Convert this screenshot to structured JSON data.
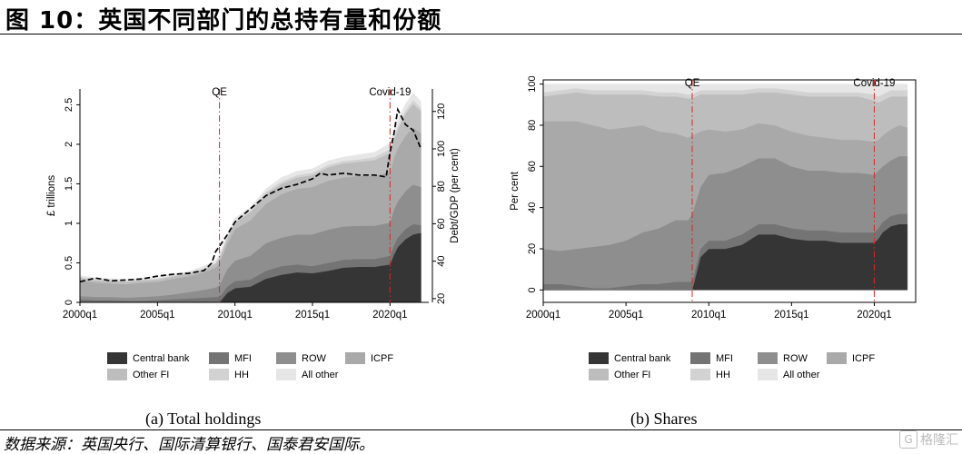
{
  "figure": {
    "title": "图 10：英国不同部门的总持有量和份额",
    "source": "数据来源：英国央行、国际清算银行、国泰君安国际。",
    "watermark": "格隆汇"
  },
  "colors": {
    "Central bank": "#353535",
    "MFI": "#747474",
    "ROW": "#8e8e8e",
    "ICPF": "#a9a9a9",
    "Other FI": "#bdbdbd",
    "HH": "#d2d2d2",
    "All other": "#e6e6e6",
    "event_line": "#d62728"
  },
  "legend": [
    "Central bank",
    "MFI",
    "ROW",
    "ICPF",
    "Other FI",
    "HH",
    "All other"
  ],
  "chart_data": [
    {
      "type": "area",
      "caption": "(a)  Total holdings",
      "stacked": true,
      "x": [
        2000.0,
        2001.0,
        2002.0,
        2003.0,
        2004.0,
        2005.0,
        2006.0,
        2007.0,
        2008.0,
        2008.75,
        2009.0,
        2009.5,
        2010.0,
        2011.0,
        2012.0,
        2013.0,
        2014.0,
        2015.0,
        2016.0,
        2017.0,
        2018.0,
        2019.0,
        2020.0,
        2020.25,
        2020.5,
        2021.0,
        2021.5,
        2022.0
      ],
      "xlim": [
        2000.0,
        2022.5
      ],
      "xticks": [
        {
          "value": 2000.0,
          "label": "2000q1"
        },
        {
          "value": 2005.0,
          "label": "2005q1"
        },
        {
          "value": 2010.0,
          "label": "2010q1"
        },
        {
          "value": 2015.0,
          "label": "2015q1"
        },
        {
          "value": 2020.0,
          "label": "2020q1"
        }
      ],
      "ylim": [
        0,
        2.7
      ],
      "yticks": [
        0,
        0.5,
        1,
        1.5,
        2,
        2.5
      ],
      "ylabel": "£ trillions",
      "y2label": "Debt/GDP (per cent)",
      "y2lim": [
        18,
        132
      ],
      "y2ticks": [
        20,
        40,
        60,
        80,
        100,
        120
      ],
      "events": [
        {
          "x": 2009.0,
          "label": "QE"
        },
        {
          "x": 2020.0,
          "label": "Covid-19"
        }
      ],
      "series": [
        {
          "name": "Central bank",
          "values": [
            0,
            0,
            0,
            0,
            0,
            0,
            0,
            0,
            0,
            0,
            0,
            0.12,
            0.18,
            0.2,
            0.3,
            0.35,
            0.38,
            0.37,
            0.4,
            0.44,
            0.45,
            0.45,
            0.48,
            0.6,
            0.7,
            0.8,
            0.86,
            0.88
          ]
        },
        {
          "name": "MFI",
          "values": [
            0.04,
            0.03,
            0.03,
            0.02,
            0.02,
            0.03,
            0.04,
            0.05,
            0.06,
            0.07,
            0.07,
            0.08,
            0.09,
            0.09,
            0.1,
            0.11,
            0.1,
            0.09,
            0.1,
            0.1,
            0.1,
            0.1,
            0.11,
            0.12,
            0.12,
            0.13,
            0.13,
            0.1
          ]
        },
        {
          "name": "ROW",
          "values": [
            0.04,
            0.04,
            0.04,
            0.04,
            0.05,
            0.05,
            0.06,
            0.08,
            0.1,
            0.12,
            0.15,
            0.22,
            0.26,
            0.3,
            0.35,
            0.36,
            0.38,
            0.4,
            0.42,
            0.42,
            0.42,
            0.42,
            0.42,
            0.45,
            0.46,
            0.48,
            0.5,
            0.48
          ]
        },
        {
          "name": "ICPF",
          "values": [
            0.2,
            0.18,
            0.17,
            0.17,
            0.18,
            0.18,
            0.2,
            0.2,
            0.22,
            0.25,
            0.28,
            0.32,
            0.4,
            0.45,
            0.5,
            0.55,
            0.58,
            0.6,
            0.62,
            0.62,
            0.63,
            0.63,
            0.64,
            0.66,
            0.67,
            0.7,
            0.72,
            0.68
          ]
        },
        {
          "name": "Other FI",
          "values": [
            0.03,
            0.03,
            0.03,
            0.03,
            0.03,
            0.03,
            0.03,
            0.03,
            0.04,
            0.05,
            0.06,
            0.07,
            0.08,
            0.1,
            0.12,
            0.13,
            0.14,
            0.15,
            0.17,
            0.18,
            0.18,
            0.2,
            0.24,
            0.22,
            0.24,
            0.28,
            0.3,
            0.28
          ]
        },
        {
          "name": "HH",
          "values": [
            0.01,
            0.01,
            0.01,
            0.01,
            0.01,
            0.01,
            0.01,
            0.01,
            0.01,
            0.01,
            0.02,
            0.02,
            0.02,
            0.02,
            0.03,
            0.03,
            0.03,
            0.03,
            0.03,
            0.03,
            0.03,
            0.04,
            0.05,
            0.04,
            0.04,
            0.04,
            0.05,
            0.04
          ]
        },
        {
          "name": "All other",
          "values": [
            0.02,
            0.02,
            0.02,
            0.02,
            0.02,
            0.02,
            0.02,
            0.02,
            0.03,
            0.03,
            0.03,
            0.03,
            0.04,
            0.04,
            0.04,
            0.05,
            0.05,
            0.05,
            0.05,
            0.05,
            0.06,
            0.06,
            0.07,
            0.07,
            0.08,
            0.08,
            0.09,
            0.08
          ]
        }
      ],
      "debt_gdp": {
        "x": [
          2000.0,
          2001.0,
          2002.0,
          2003.0,
          2004.0,
          2005.0,
          2006.0,
          2007.0,
          2008.0,
          2008.5,
          2008.75,
          2009.0,
          2009.5,
          2010.0,
          2011.0,
          2012.0,
          2013.0,
          2014.0,
          2015.0,
          2015.5,
          2016.0,
          2017.0,
          2018.0,
          2019.0,
          2019.75,
          2020.0,
          2020.25,
          2020.5,
          2021.0,
          2021.5,
          2022.0
        ],
        "values": [
          29.0,
          31.0,
          29.5,
          30.0,
          30.5,
          32.0,
          33.0,
          33.5,
          35.0,
          39.0,
          45.0,
          48.0,
          54.0,
          61.0,
          68.0,
          75.0,
          79.0,
          81.0,
          84.0,
          87.0,
          86.0,
          87.0,
          86.0,
          86.0,
          85.0,
          98.0,
          108.0,
          121.0,
          113.0,
          110.0,
          100.0
        ]
      }
    },
    {
      "type": "area",
      "caption": "(b)  Shares",
      "stacked": true,
      "x": [
        2000.0,
        2001.0,
        2002.0,
        2003.0,
        2004.0,
        2005.0,
        2006.0,
        2007.0,
        2008.0,
        2008.75,
        2009.0,
        2009.5,
        2010.0,
        2011.0,
        2012.0,
        2013.0,
        2014.0,
        2015.0,
        2016.0,
        2017.0,
        2018.0,
        2019.0,
        2020.0,
        2020.25,
        2020.5,
        2021.0,
        2021.5,
        2022.0
      ],
      "xlim": [
        2000.0,
        2022.5
      ],
      "xticks": [
        {
          "value": 2000.0,
          "label": "2000q1"
        },
        {
          "value": 2005.0,
          "label": "2005q1"
        },
        {
          "value": 2010.0,
          "label": "2010q1"
        },
        {
          "value": 2015.0,
          "label": "2015q1"
        },
        {
          "value": 2020.0,
          "label": "2020q1"
        }
      ],
      "ylim": [
        -6,
        102
      ],
      "yticks": [
        0,
        20,
        40,
        60,
        80,
        100
      ],
      "ylabel": "Per cent",
      "events": [
        {
          "x": 2009.0,
          "label": "QE"
        },
        {
          "x": 2020.0,
          "label": "Covid-19"
        }
      ],
      "series": [
        {
          "name": "Central bank",
          "values": [
            0,
            0,
            0,
            0,
            0,
            0,
            0,
            0,
            0,
            0,
            0,
            16.0,
            20.0,
            20.0,
            22.0,
            27.0,
            27.0,
            25.0,
            24.0,
            24.0,
            23.0,
            23.0,
            23.0,
            25.0,
            28.0,
            31.0,
            32.0,
            32.0
          ]
        },
        {
          "name": "MFI",
          "values": [
            3.0,
            3.0,
            2.0,
            1.0,
            1.0,
            2.0,
            3.0,
            3.0,
            4.0,
            4.0,
            4.0,
            4.0,
            4.0,
            4.0,
            5.0,
            5.0,
            5.0,
            5.0,
            5.0,
            5.0,
            5.0,
            5.0,
            5.0,
            5.0,
            5.0,
            5.0,
            5.0,
            5.0
          ]
        },
        {
          "name": "ROW",
          "values": [
            17.0,
            16.0,
            18.0,
            20.0,
            21.0,
            22.0,
            25.0,
            27.0,
            30.0,
            30.0,
            33.0,
            30.0,
            32.0,
            33.0,
            33.0,
            32.0,
            32.0,
            30.0,
            29.0,
            29.0,
            29.0,
            29.0,
            28.0,
            28.0,
            27.0,
            27.0,
            28.0,
            28.0
          ]
        },
        {
          "name": "ICPF",
          "values": [
            62.0,
            63.0,
            62.0,
            59.0,
            56.0,
            55.0,
            52.0,
            47.0,
            42.0,
            40.0,
            38.0,
            27.0,
            22.0,
            20.0,
            18.0,
            17.0,
            16.0,
            17.0,
            17.0,
            16.0,
            16.0,
            16.0,
            16.0,
            15.0,
            15.0,
            15.0,
            15.0,
            14.0
          ]
        },
        {
          "name": "Other FI",
          "values": [
            12.0,
            13.0,
            14.0,
            15.0,
            17.0,
            16.0,
            15.0,
            17.0,
            18.0,
            19.0,
            18.0,
            18.0,
            17.0,
            18.0,
            17.0,
            15.0,
            16.0,
            18.0,
            19.0,
            20.0,
            21.0,
            21.0,
            20.0,
            18.0,
            17.0,
            16.0,
            14.0,
            15.0
          ]
        },
        {
          "name": "HH",
          "values": [
            2.0,
            2.0,
            2.0,
            2.0,
            2.0,
            2.0,
            2.0,
            2.0,
            2.0,
            2.0,
            2.0,
            2.0,
            2.0,
            2.0,
            2.0,
            2.0,
            2.0,
            2.0,
            2.0,
            2.0,
            2.0,
            2.0,
            3.0,
            3.0,
            3.0,
            3.0,
            3.0,
            3.0
          ]
        },
        {
          "name": "All other",
          "values": [
            4.0,
            3.0,
            2.0,
            3.0,
            3.0,
            3.0,
            3.0,
            4.0,
            4.0,
            5.0,
            5.0,
            3.0,
            3.0,
            3.0,
            3.0,
            2.0,
            2.0,
            3.0,
            4.0,
            4.0,
            4.0,
            4.0,
            5.0,
            6.0,
            5.0,
            3.0,
            3.0,
            3.0
          ]
        }
      ]
    }
  ]
}
